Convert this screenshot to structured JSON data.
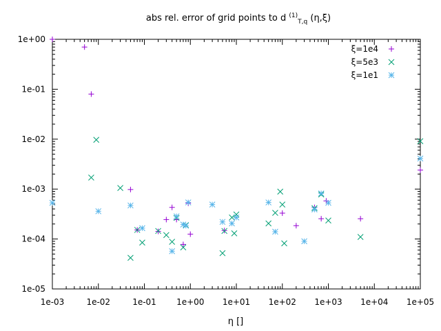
{
  "chart_data": {
    "type": "scatter",
    "title": "abs rel. error of grid points to d",
    "title_sup": "(1)",
    "title_sub": "T,q",
    "title_tail": " (η,ξ)",
    "xlabel": "η []",
    "ylabel": "",
    "xscale": "log",
    "yscale": "log",
    "xlim": [
      0.001,
      100000
    ],
    "ylim": [
      1e-05,
      1
    ],
    "x_ticks": [
      0.001,
      0.01,
      0.1,
      1,
      10,
      100,
      1000,
      10000,
      100000
    ],
    "x_tick_labels": [
      "1e-03",
      "1e-02",
      "1e-01",
      "1e+00",
      "1e+01",
      "1e+02",
      "1e+03",
      "1e+04",
      "1e+05"
    ],
    "y_ticks": [
      1e-05,
      0.0001,
      0.001,
      0.01,
      0.1,
      1
    ],
    "y_tick_labels": [
      "1e-05",
      "1e-04",
      "1e-03",
      "1e-02",
      "1e-01",
      "1e+00"
    ],
    "legend_position": "top-right",
    "series": [
      {
        "name": "ξ=1e4",
        "marker": "plus",
        "color": "#9400d3",
        "points": [
          [
            0.001,
            1.0
          ],
          [
            0.005,
            0.7
          ],
          [
            0.007,
            0.08
          ],
          [
            0.05,
            0.00098
          ],
          [
            0.07,
            0.000152
          ],
          [
            0.2,
            0.000142
          ],
          [
            0.3,
            0.000245
          ],
          [
            0.4,
            0.00043
          ],
          [
            0.5,
            0.000245
          ],
          [
            0.7,
            7.8e-05
          ],
          [
            0.9,
            0.00052
          ],
          [
            1.0,
            0.000125
          ],
          [
            5.5,
            0.000148
          ],
          [
            100,
            0.00033
          ],
          [
            200,
            0.000185
          ],
          [
            500,
            0.00043
          ],
          [
            700,
            0.000255
          ],
          [
            900,
            0.00058
          ],
          [
            5000,
            0.000255
          ],
          [
            100000,
            0.0024
          ]
        ]
      },
      {
        "name": "ξ=5e3",
        "marker": "cross",
        "color": "#009e73",
        "points": [
          [
            0.007,
            0.0017
          ],
          [
            0.009,
            0.0097
          ],
          [
            0.03,
            0.00105
          ],
          [
            0.05,
            4.2e-05
          ],
          [
            0.07,
            0.000152
          ],
          [
            0.09,
            8.5e-05
          ],
          [
            0.2,
            0.000145
          ],
          [
            0.3,
            0.00012
          ],
          [
            0.4,
            8.8e-05
          ],
          [
            0.5,
            0.000265
          ],
          [
            0.7,
            6.8e-05
          ],
          [
            0.8,
            0.00019
          ],
          [
            5,
            5.2e-05
          ],
          [
            5.5,
            0.000145
          ],
          [
            8,
            0.00027
          ],
          [
            9,
            0.00013
          ],
          [
            10,
            0.00031
          ],
          [
            50,
            0.000205
          ],
          [
            70,
            0.000335
          ],
          [
            90,
            0.00089
          ],
          [
            100,
            0.00049
          ],
          [
            110,
            8.2e-05
          ],
          [
            500,
            0.000415
          ],
          [
            700,
            0.00078
          ],
          [
            1000,
            0.000235
          ],
          [
            5000,
            0.00011
          ],
          [
            100000,
            0.0091
          ]
        ]
      },
      {
        "name": "ξ=1e1",
        "marker": "star",
        "color": "#56b4e9",
        "points": [
          [
            0.001,
            0.00053
          ],
          [
            0.01,
            0.00036
          ],
          [
            0.05,
            0.00047
          ],
          [
            0.09,
            0.000165
          ],
          [
            0.4,
            5.7e-05
          ],
          [
            0.5,
            0.000285
          ],
          [
            0.7,
            0.000195
          ],
          [
            0.8,
            0.000185
          ],
          [
            0.9,
            0.00054
          ],
          [
            3,
            0.00049
          ],
          [
            5,
            0.00022
          ],
          [
            8,
            0.000205
          ],
          [
            10,
            0.00027
          ],
          [
            50,
            0.00054
          ],
          [
            70,
            0.00014
          ],
          [
            300,
            9e-05
          ],
          [
            500,
            0.00039
          ],
          [
            700,
            0.00082
          ],
          [
            1000,
            0.00053
          ],
          [
            100000,
            0.0041
          ]
        ]
      }
    ]
  }
}
